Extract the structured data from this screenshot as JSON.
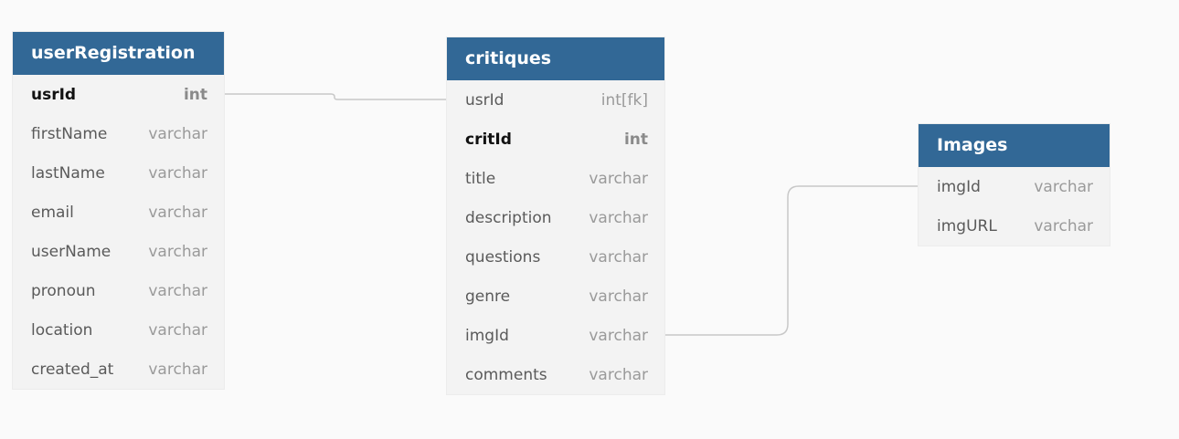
{
  "tables": [
    {
      "name": "userRegistration",
      "columns": [
        {
          "name": "usrId",
          "type": "int",
          "pk": true
        },
        {
          "name": "firstName",
          "type": "varchar",
          "pk": false
        },
        {
          "name": "lastName",
          "type": "varchar",
          "pk": false
        },
        {
          "name": "email",
          "type": "varchar",
          "pk": false
        },
        {
          "name": "userName",
          "type": "varchar",
          "pk": false
        },
        {
          "name": "pronoun",
          "type": "varchar",
          "pk": false
        },
        {
          "name": "location",
          "type": "varchar",
          "pk": false
        },
        {
          "name": "created_at",
          "type": "varchar",
          "pk": false
        }
      ]
    },
    {
      "name": "critiques",
      "columns": [
        {
          "name": "usrId",
          "type": "int[fk]",
          "pk": false
        },
        {
          "name": "critId",
          "type": "int",
          "pk": true
        },
        {
          "name": "title",
          "type": "varchar",
          "pk": false
        },
        {
          "name": "description",
          "type": "varchar",
          "pk": false
        },
        {
          "name": "questions",
          "type": "varchar",
          "pk": false
        },
        {
          "name": "genre",
          "type": "varchar",
          "pk": false
        },
        {
          "name": "imgId",
          "type": "varchar",
          "pk": false
        },
        {
          "name": "comments",
          "type": "varchar",
          "pk": false
        }
      ]
    },
    {
      "name": "Images",
      "columns": [
        {
          "name": "imgId",
          "type": "varchar",
          "pk": false
        },
        {
          "name": "imgURL",
          "type": "varchar",
          "pk": false
        }
      ]
    }
  ],
  "colors": {
    "header": "#326896",
    "background": "#fafafa",
    "table_body": "#f3f3f3",
    "connector": "#c8c8c8"
  }
}
